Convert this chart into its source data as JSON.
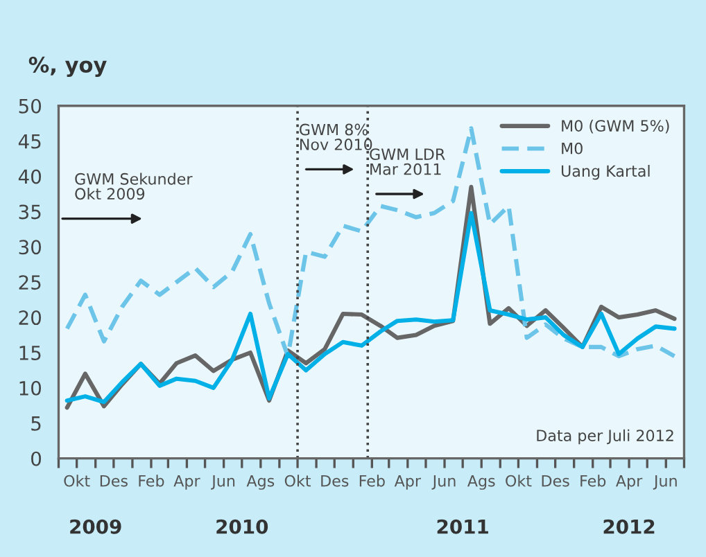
{
  "chart_data": {
    "type": "line",
    "title": "%, yoy",
    "x": [
      "2009-09-15",
      "2009-10-15",
      "2009-11-15",
      "2009-12-15",
      "2010-01-15",
      "2010-02-15",
      "2010-03-15",
      "2010-04-15",
      "2010-05-15",
      "2010-06-15",
      "2010-07-15",
      "2010-08-15",
      "2010-09-15",
      "2010-10-15",
      "2010-11-15",
      "2010-12-15",
      "2011-01-15",
      "2011-02-15",
      "2011-03-15",
      "2011-04-15",
      "2011-05-15",
      "2011-06-15",
      "2011-07-15",
      "2011-08-15",
      "2011-09-15",
      "2011-10-15",
      "2011-11-15",
      "2011-12-15",
      "2012-01-15",
      "2012-02-15",
      "2012-03-15",
      "2012-04-15",
      "2012-05-15",
      "2012-06-15"
    ],
    "series": [
      {
        "name": "M0 (GWM 5%)",
        "color": "#666666",
        "line_style": "solid",
        "values": [
          7.2,
          12,
          7.4,
          10.5,
          13.4,
          10.6,
          13.5,
          14.6,
          12.4,
          14,
          15,
          8.2,
          15.3,
          13.5,
          15.5,
          20.5,
          20.4,
          18.8,
          17.1,
          17.5,
          18.8,
          19.5,
          38.5,
          19.1,
          21.3,
          18.8,
          21,
          18.5,
          15.8,
          21.5,
          20,
          20.4,
          21,
          19.8
        ]
      },
      {
        "name": "M0",
        "color": "#6cc5e9",
        "line_style": "dashed",
        "values": [
          18.4,
          23.2,
          16.6,
          21.5,
          25.2,
          23.2,
          25,
          27,
          24.3,
          26.5,
          31.8,
          22,
          14.5,
          29.3,
          28.6,
          33,
          32.2,
          35.8,
          35.2,
          34.2,
          34.8,
          36.5,
          46.8,
          33.2,
          35.8,
          17.1,
          19,
          17,
          15.8,
          15.8,
          14.5,
          15.5,
          16,
          14.5
        ]
      },
      {
        "name": "Uang Kartal",
        "color": "#00b0e6",
        "line_style": "solid",
        "values": [
          8.2,
          8.8,
          8,
          10.8,
          13.4,
          10.3,
          11.3,
          11,
          10,
          14,
          20.5,
          8.5,
          14.8,
          12.5,
          14.8,
          16.5,
          16,
          18,
          19.5,
          19.7,
          19.4,
          19.6,
          34.8,
          21,
          20.4,
          19.7,
          20,
          17.5,
          15.8,
          20.5,
          14.8,
          17,
          18.7,
          18.4
        ]
      }
    ],
    "xlim": [
      "2009-09-01",
      "2012-07-01"
    ],
    "xticks": [
      {
        "value": "2009-09-01",
        "label": null
      },
      {
        "value": "2009-10-01",
        "label": "Okt"
      },
      {
        "value": "2009-11-01",
        "label": null
      },
      {
        "value": "2009-12-01",
        "label": "Des"
      },
      {
        "value": "2010-01-01",
        "label": null
      },
      {
        "value": "2010-02-01",
        "label": "Feb"
      },
      {
        "value": "2010-03-01",
        "label": null
      },
      {
        "value": "2010-04-01",
        "label": "Apr"
      },
      {
        "value": "2010-05-01",
        "label": null
      },
      {
        "value": "2010-06-01",
        "label": "Jun"
      },
      {
        "value": "2010-07-01",
        "label": null
      },
      {
        "value": "2010-08-01",
        "label": "Ags"
      },
      {
        "value": "2010-09-01",
        "label": null
      },
      {
        "value": "2010-10-01",
        "label": "Okt"
      },
      {
        "value": "2010-11-01",
        "label": null
      },
      {
        "value": "2010-12-01",
        "label": "Des"
      },
      {
        "value": "2011-01-01",
        "label": null
      },
      {
        "value": "2011-02-01",
        "label": "Feb"
      },
      {
        "value": "2011-03-01",
        "label": null
      },
      {
        "value": "2011-04-01",
        "label": "Apr"
      },
      {
        "value": "2011-05-01",
        "label": null
      },
      {
        "value": "2011-06-01",
        "label": "Jun"
      },
      {
        "value": "2011-07-01",
        "label": null
      },
      {
        "value": "2011-08-01",
        "label": "Ags"
      },
      {
        "value": "2011-09-01",
        "label": null
      },
      {
        "value": "2011-10-01",
        "label": "Okt"
      },
      {
        "value": "2011-11-01",
        "label": null
      },
      {
        "value": "2011-12-01",
        "label": "Des"
      },
      {
        "value": "2012-01-01",
        "label": null
      },
      {
        "value": "2012-02-01",
        "label": "Feb"
      },
      {
        "value": "2012-03-01",
        "label": null
      },
      {
        "value": "2012-04-01",
        "label": "Apr"
      },
      {
        "value": "2012-05-01",
        "label": null
      },
      {
        "value": "2012-06-01",
        "label": "Jun"
      },
      {
        "value": "2012-07-01",
        "label": null
      }
    ],
    "x2lim": [
      "2009-09-01",
      "2012-07-01"
    ],
    "x2ticks": [
      {
        "value": "2009-11-01",
        "label": "2009"
      },
      {
        "value": "2010-07-01",
        "label": "2010"
      },
      {
        "value": "2011-07-01",
        "label": "2011"
      },
      {
        "value": "2012-04-01",
        "label": "2012"
      }
    ],
    "ylim": [
      0,
      50
    ],
    "yticks": [
      0,
      5,
      10,
      15,
      20,
      25,
      30,
      35,
      40,
      45,
      50
    ],
    "ref_lines": [
      {
        "axis": "x",
        "value": "2010-10-01",
        "label": "GWM 8%\nNov 2010",
        "color": "#444444",
        "line_style": "dotted"
      },
      {
        "axis": "x",
        "value": "2011-01-25",
        "label": "GWM LDR\nMar 2011",
        "color": "#444444",
        "line_style": "dotted"
      }
    ],
    "annotations": [
      "GWM Sekunder\nOkt 2009",
      "Data per Juli 2012"
    ],
    "grid": false,
    "legend": "top right"
  }
}
